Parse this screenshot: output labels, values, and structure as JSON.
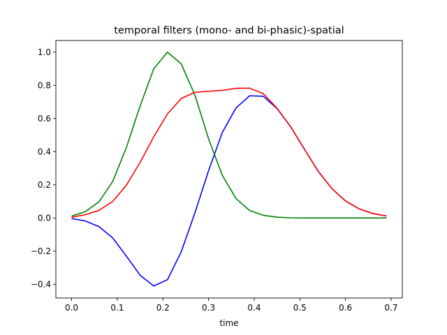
{
  "chart_data": {
    "type": "line",
    "title": "temporal filters (mono- and bi-phasic)-spatial",
    "xlabel": "time",
    "ylabel": "",
    "xlim": [
      -0.0345,
      0.7245
    ],
    "ylim": [
      -0.4825,
      1.0705
    ],
    "grid": false,
    "x_ticks": [
      0.0,
      0.1,
      0.2,
      0.3,
      0.4,
      0.5,
      0.6,
      0.7
    ],
    "x_tick_labels": [
      "0.0",
      "0.1",
      "0.2",
      "0.3",
      "0.4",
      "0.5",
      "0.6",
      "0.7"
    ],
    "y_ticks": [
      -0.4,
      -0.2,
      0.0,
      0.2,
      0.4,
      0.6,
      0.8,
      1.0
    ],
    "y_tick_labels": [
      "−0.4",
      "−0.2",
      "0.0",
      "0.2",
      "0.4",
      "0.6",
      "0.8",
      "1.0"
    ],
    "x": [
      0.0,
      0.03,
      0.06,
      0.09,
      0.12,
      0.15,
      0.18,
      0.21,
      0.24,
      0.27,
      0.3,
      0.33,
      0.36,
      0.39,
      0.42,
      0.45,
      0.48,
      0.51,
      0.54,
      0.57,
      0.6,
      0.63,
      0.66,
      0.69
    ],
    "series": [
      {
        "color": "#0000ff",
        "values": [
          -0.003,
          -0.018,
          -0.052,
          -0.12,
          -0.23,
          -0.345,
          -0.41,
          -0.372,
          -0.205,
          0.03,
          0.285,
          0.515,
          0.663,
          0.737,
          0.734,
          0.66,
          0.55,
          0.415,
          0.283,
          0.178,
          0.103,
          0.055,
          0.027,
          0.012
        ]
      },
      {
        "color": "#008000",
        "values": [
          0.012,
          0.038,
          0.098,
          0.22,
          0.425,
          0.675,
          0.9,
          1.0,
          0.93,
          0.742,
          0.478,
          0.258,
          0.118,
          0.045,
          0.016,
          0.005,
          0.001,
          0.0,
          0.0,
          0.0,
          0.0,
          0.0,
          0.0,
          0.0
        ]
      },
      {
        "color": "#ff0000",
        "values": [
          0.005,
          0.02,
          0.046,
          0.1,
          0.198,
          0.335,
          0.49,
          0.628,
          0.72,
          0.758,
          0.764,
          0.77,
          0.782,
          0.783,
          0.75,
          0.662,
          0.55,
          0.415,
          0.283,
          0.178,
          0.103,
          0.055,
          0.027,
          0.012
        ]
      }
    ]
  }
}
